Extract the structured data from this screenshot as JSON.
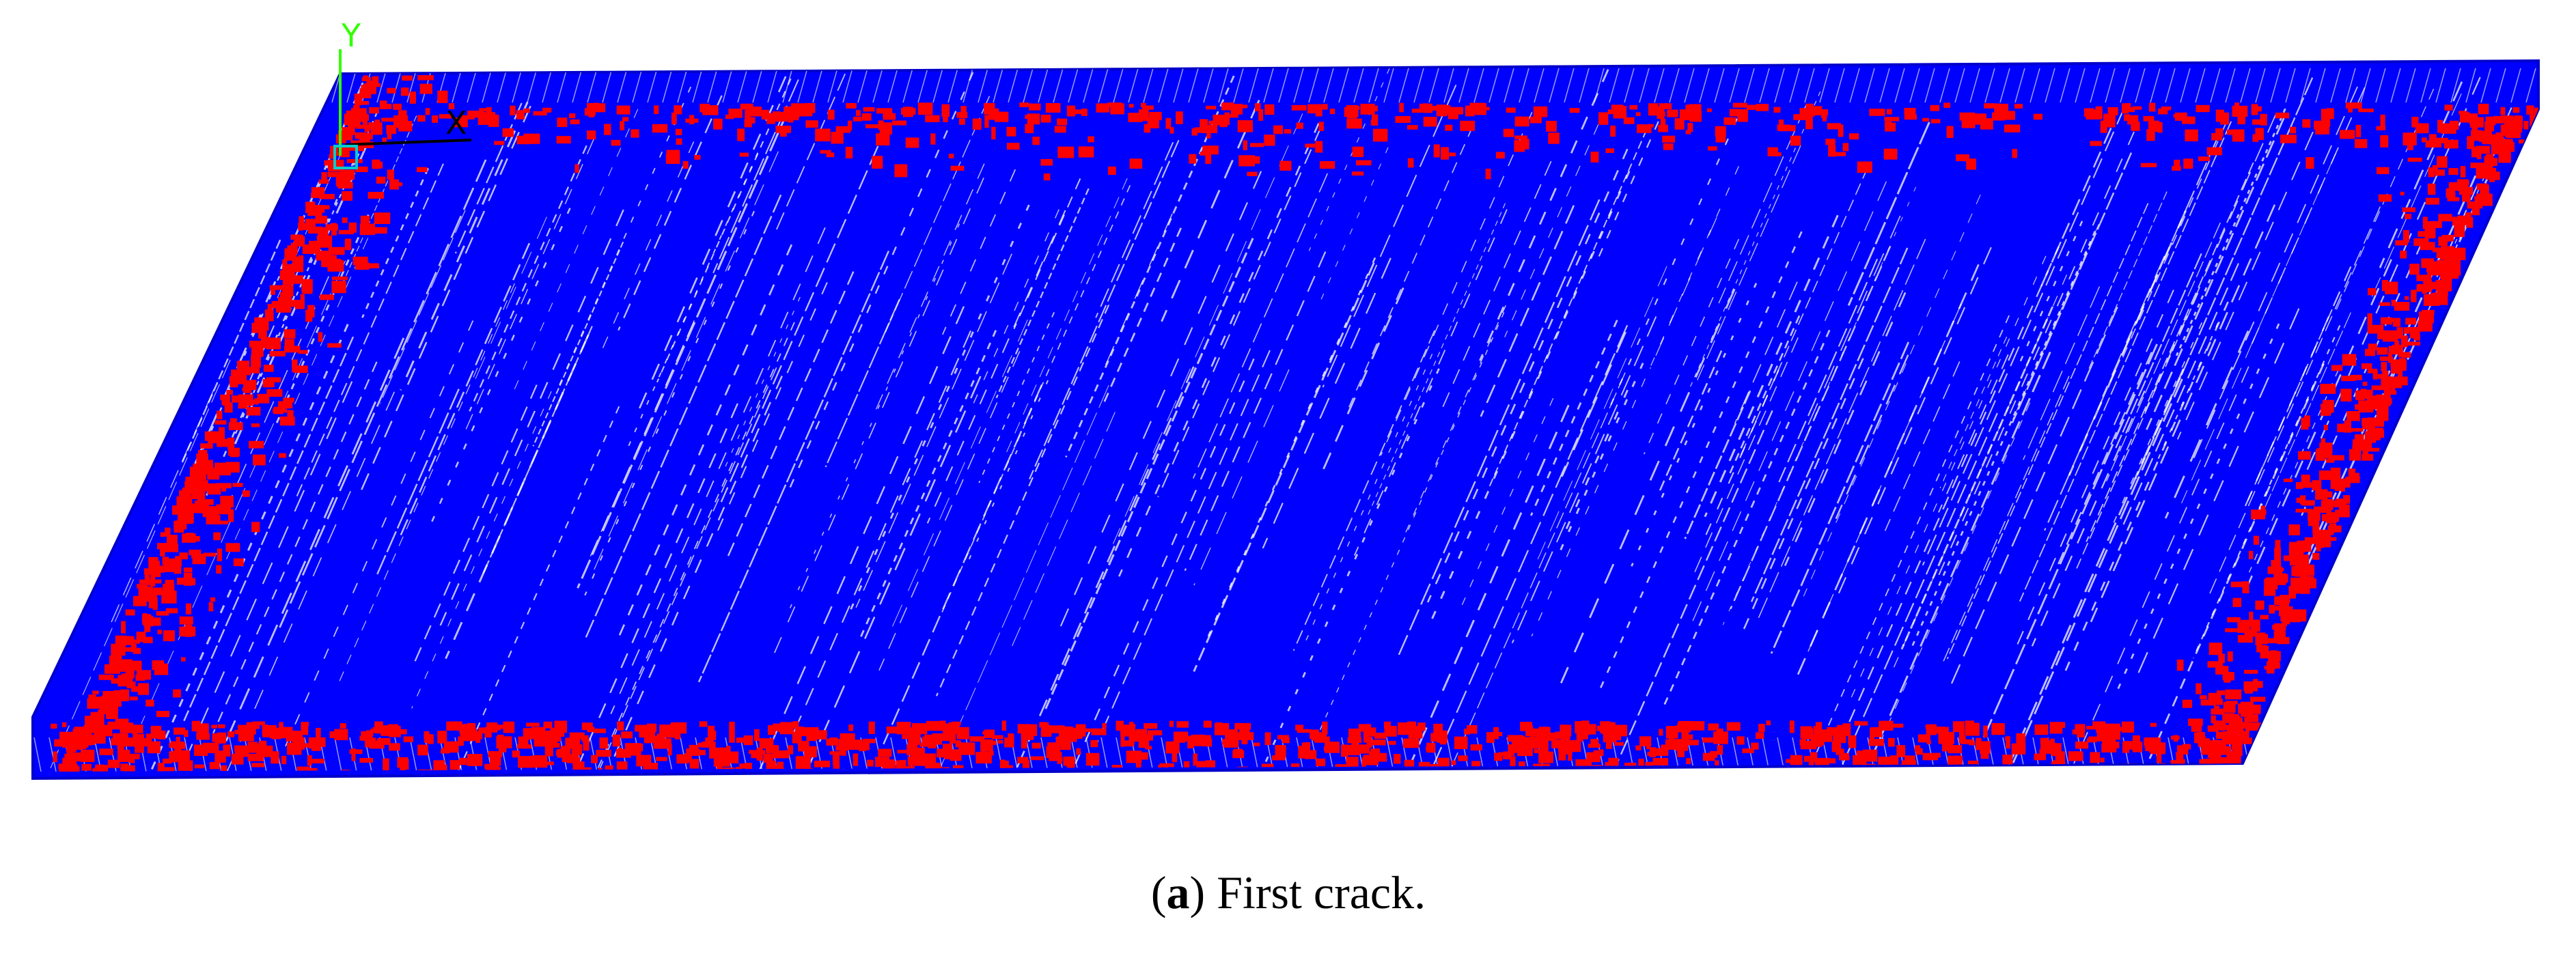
{
  "figure": {
    "axis_labels": {
      "y": "Y",
      "x": "X"
    },
    "caption": {
      "open": "(",
      "label": "a",
      "rest": ") First crack."
    }
  }
}
